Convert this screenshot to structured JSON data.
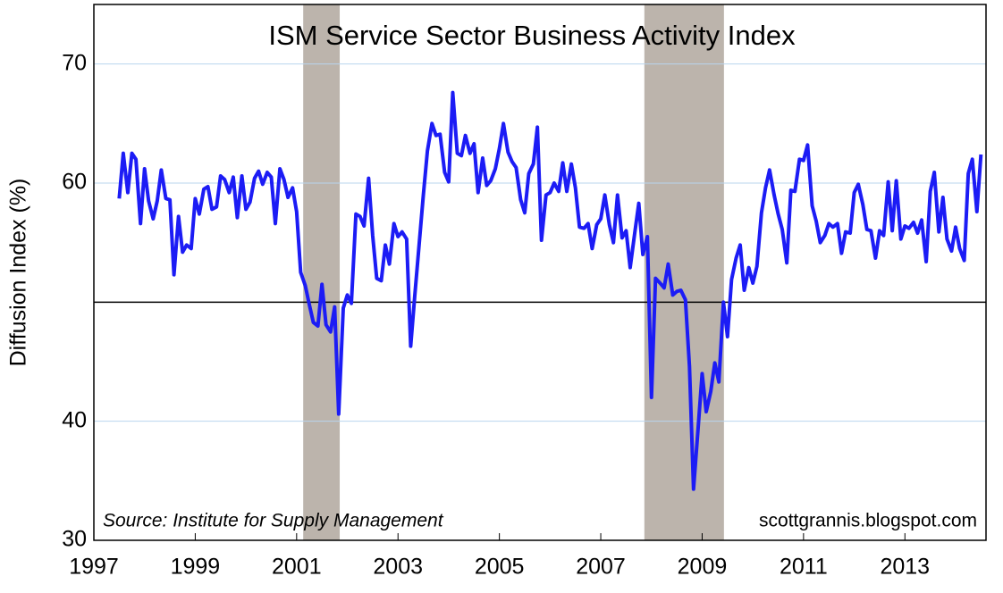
{
  "chart_data": {
    "type": "line",
    "title": "ISM Service Sector Business Activity Index",
    "y_label": "Diffusion Index (%)",
    "source": "Source:  Institute for Supply Management",
    "credit": "scottgrannis.blogspot.com",
    "xlim": [
      1997,
      2014.6
    ],
    "xticks": [
      1997,
      1999,
      2001,
      2003,
      2005,
      2007,
      2009,
      2011,
      2013
    ],
    "ylim": [
      30,
      75
    ],
    "yticks": [
      30,
      40,
      60,
      70
    ],
    "grid": true,
    "reference_line": 50,
    "shaded_regions": [
      [
        2001.13,
        2001.85
      ],
      [
        2007.86,
        2009.43
      ]
    ],
    "shade_color": "#bcb4ac",
    "x": [
      1997.5,
      1997.58,
      1997.67,
      1997.75,
      1997.83,
      1997.92,
      1998,
      1998.08,
      1998.17,
      1998.25,
      1998.33,
      1998.42,
      1998.5,
      1998.58,
      1998.67,
      1998.75,
      1998.83,
      1998.92,
      1999,
      1999.08,
      1999.17,
      1999.25,
      1999.33,
      1999.42,
      1999.5,
      1999.58,
      1999.67,
      1999.75,
      1999.83,
      1999.92,
      2000,
      2000.08,
      2000.17,
      2000.25,
      2000.33,
      2000.42,
      2000.5,
      2000.58,
      2000.67,
      2000.75,
      2000.83,
      2000.92,
      2001,
      2001.08,
      2001.17,
      2001.25,
      2001.33,
      2001.42,
      2001.5,
      2001.58,
      2001.67,
      2001.75,
      2001.83,
      2001.92,
      2002,
      2002.08,
      2002.17,
      2002.25,
      2002.33,
      2002.42,
      2002.5,
      2002.58,
      2002.67,
      2002.75,
      2002.83,
      2002.92,
      2003,
      2003.08,
      2003.17,
      2003.25,
      2003.33,
      2003.42,
      2003.5,
      2003.58,
      2003.67,
      2003.75,
      2003.83,
      2003.92,
      2004,
      2004.08,
      2004.17,
      2004.25,
      2004.33,
      2004.42,
      2004.5,
      2004.58,
      2004.67,
      2004.75,
      2004.83,
      2004.92,
      2005,
      2005.08,
      2005.17,
      2005.25,
      2005.33,
      2005.42,
      2005.5,
      2005.58,
      2005.67,
      2005.75,
      2005.83,
      2005.92,
      2006,
      2006.08,
      2006.17,
      2006.25,
      2006.33,
      2006.42,
      2006.5,
      2006.58,
      2006.67,
      2006.75,
      2006.83,
      2006.92,
      2007,
      2007.08,
      2007.17,
      2007.25,
      2007.33,
      2007.42,
      2007.5,
      2007.58,
      2007.67,
      2007.75,
      2007.83,
      2007.92,
      2008,
      2008.08,
      2008.17,
      2008.25,
      2008.33,
      2008.42,
      2008.5,
      2008.58,
      2008.67,
      2008.75,
      2008.83,
      2008.92,
      2009,
      2009.08,
      2009.17,
      2009.25,
      2009.33,
      2009.42,
      2009.5,
      2009.58,
      2009.67,
      2009.75,
      2009.83,
      2009.92,
      2010,
      2010.08,
      2010.17,
      2010.25,
      2010.33,
      2010.42,
      2010.5,
      2010.58,
      2010.67,
      2010.75,
      2010.83,
      2010.92,
      2011,
      2011.08,
      2011.17,
      2011.25,
      2011.33,
      2011.42,
      2011.5,
      2011.58,
      2011.67,
      2011.75,
      2011.83,
      2011.92,
      2012,
      2012.08,
      2012.17,
      2012.25,
      2012.33,
      2012.42,
      2012.5,
      2012.58,
      2012.67,
      2012.75,
      2012.83,
      2012.92,
      2013,
      2013.08,
      2013.17,
      2013.25,
      2013.33,
      2013.42,
      2013.5,
      2013.58,
      2013.67,
      2013.75,
      2013.83,
      2013.92,
      2014,
      2014.08,
      2014.17,
      2014.25,
      2014.33,
      2014.42,
      2014.5
    ],
    "series": [
      {
        "name": "ISM Service Sector Business Activity Index",
        "color": "#1c1cf5",
        "values": [
          58.7,
          62.5,
          59.2,
          62.5,
          62,
          56.6,
          61.2,
          58.5,
          57,
          58.5,
          61.1,
          58.7,
          58.6,
          52.3,
          57.2,
          54.2,
          54.8,
          54.5,
          58.7,
          57.4,
          59.5,
          59.7,
          57.8,
          58,
          60.6,
          60.3,
          59.2,
          60.5,
          57.1,
          60.6,
          57.8,
          58.4,
          60.4,
          61,
          59.9,
          60.9,
          60.5,
          56.6,
          61.2,
          60.3,
          58.8,
          59.6,
          57.6,
          52.5,
          51.4,
          49.8,
          48.3,
          48,
          51.5,
          48.1,
          47.5,
          49.6,
          40.6,
          49.5,
          50.6,
          49.9,
          57.4,
          57.2,
          56.4,
          60.4,
          55.6,
          52,
          51.8,
          54.8,
          53.2,
          56.6,
          55.5,
          55.9,
          55.3,
          46.3,
          50.5,
          55,
          59,
          62.7,
          65,
          64,
          64.1,
          60.9,
          60.1,
          67.6,
          62.5,
          62.3,
          64,
          62.5,
          63.3,
          59.2,
          62.1,
          59.8,
          60.2,
          61.2,
          62.9,
          65,
          62.6,
          61.8,
          61.3,
          58.6,
          57.5,
          60.8,
          61.6,
          64.7,
          55.2,
          59,
          59.2,
          60,
          59.3,
          61.7,
          59.3,
          61.6,
          59.6,
          56.3,
          56.2,
          56.6,
          54.5,
          56.5,
          57,
          59,
          56.5,
          55,
          59,
          55.4,
          56,
          52.9,
          55.8,
          58.3,
          54,
          55.5,
          42,
          52,
          51.6,
          51.2,
          53.2,
          50.6,
          50.9,
          51,
          50.2,
          44.6,
          34.3,
          39.4,
          44,
          40.8,
          42.5,
          44.9,
          43.3,
          50,
          47.1,
          51.9,
          53.7,
          54.8,
          51,
          52.9,
          51.6,
          53,
          57.5,
          59.6,
          61.1,
          59,
          57.4,
          56.1,
          53.3,
          59.4,
          59.3,
          62,
          61.9,
          63.2,
          58.1,
          56.8,
          55,
          55.6,
          56.6,
          56.3,
          56.6,
          54.1,
          55.9,
          55.8,
          59.2,
          59.9,
          58.2,
          56.1,
          56,
          53.7,
          56,
          55.6,
          60.1,
          56,
          60.2,
          55.3,
          56.4,
          56.2,
          56.7,
          55.8,
          56.9,
          53.4,
          59.3,
          60.9,
          55.9,
          58.8,
          55.3,
          54.3,
          56.3,
          54.5,
          53.5,
          60.8,
          62,
          57.6,
          62.4
        ]
      }
    ]
  }
}
